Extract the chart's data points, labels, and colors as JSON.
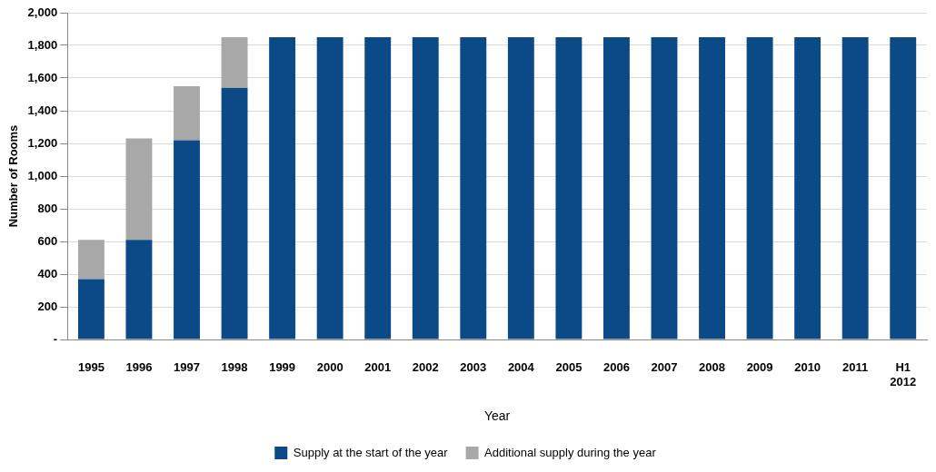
{
  "chart_data": {
    "type": "bar",
    "stacked": true,
    "xlabel": "Year",
    "ylabel": "Number of Rooms",
    "categories": [
      "1995",
      "1996",
      "1997",
      "1998",
      "1999",
      "2000",
      "2001",
      "2002",
      "2003",
      "2004",
      "2005",
      "2006",
      "2007",
      "2008",
      "2009",
      "2010",
      "2011",
      "H1 2012"
    ],
    "series": [
      {
        "name": "Supply at the start of the year",
        "color": "#0b4a86",
        "values": [
          370,
          610,
          1220,
          1540,
          1850,
          1850,
          1850,
          1850,
          1850,
          1850,
          1850,
          1850,
          1850,
          1850,
          1850,
          1850,
          1850,
          1850
        ]
      },
      {
        "name": "Additional supply during the year",
        "color": "#a8a8a8",
        "values": [
          240,
          620,
          330,
          310,
          0,
          0,
          0,
          0,
          0,
          0,
          0,
          0,
          0,
          0,
          0,
          0,
          0,
          0
        ]
      }
    ],
    "ylim": [
      0,
      2000
    ],
    "yticks": [
      {
        "value": 0,
        "label": "-"
      },
      {
        "value": 200,
        "label": "200"
      },
      {
        "value": 400,
        "label": "400"
      },
      {
        "value": 600,
        "label": "600"
      },
      {
        "value": 800,
        "label": "800"
      },
      {
        "value": 1000,
        "label": "1,000"
      },
      {
        "value": 1200,
        "label": "1,200"
      },
      {
        "value": 1400,
        "label": "1,400"
      },
      {
        "value": 1600,
        "label": "1,600"
      },
      {
        "value": 1800,
        "label": "1,800"
      },
      {
        "value": 2000,
        "label": "2,000"
      }
    ],
    "grid": "y",
    "legend": "bottom"
  }
}
